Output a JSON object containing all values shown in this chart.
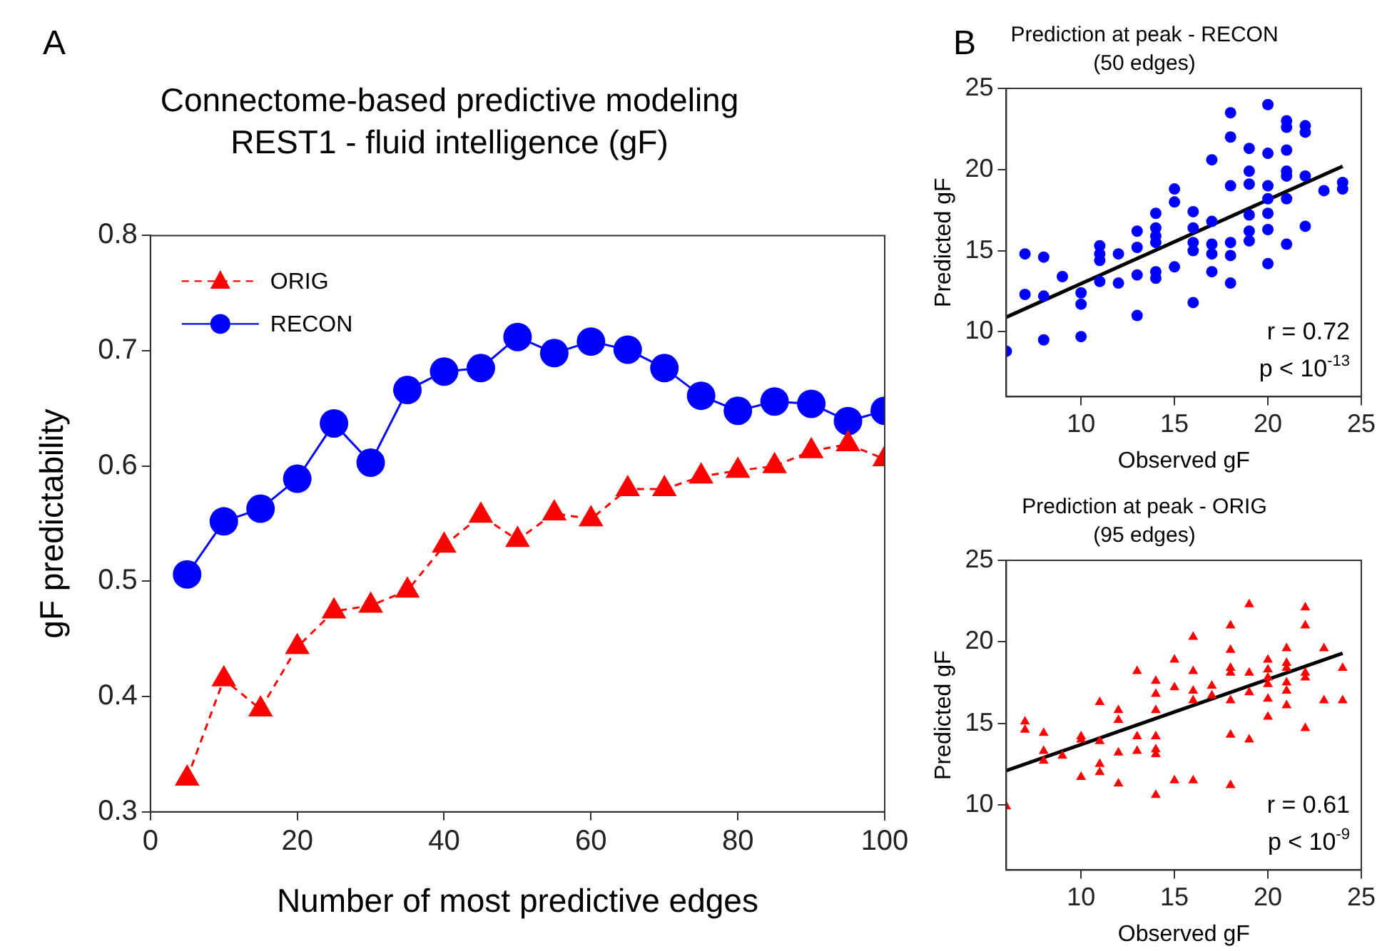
{
  "chart_data": [
    {
      "type": "line",
      "title": "Connectome-based predictive modeling",
      "subtitle": "REST1 - fluid intelligence (gF)",
      "xlabel": "Number of most predictive edges",
      "ylabel": "gF predictability",
      "annotations": [
        "A"
      ],
      "x": [
        5,
        10,
        15,
        20,
        25,
        30,
        35,
        40,
        45,
        50,
        55,
        60,
        65,
        70,
        75,
        80,
        85,
        90,
        95,
        100
      ],
      "series": [
        {
          "name": "ORIG",
          "color": "#ff0000",
          "marker": "triangle",
          "line_style": "dashed",
          "values": [
            0.329,
            0.415,
            0.389,
            0.443,
            0.474,
            0.479,
            0.492,
            0.531,
            0.557,
            0.536,
            0.559,
            0.554,
            0.58,
            0.58,
            0.591,
            0.596,
            0.6,
            0.613,
            0.619,
            0.606
          ]
        },
        {
          "name": "RECON",
          "color": "#0000ff",
          "marker": "circle",
          "line_style": "solid",
          "values": [
            0.506,
            0.552,
            0.563,
            0.589,
            0.637,
            0.603,
            0.666,
            0.682,
            0.685,
            0.712,
            0.698,
            0.708,
            0.701,
            0.685,
            0.661,
            0.648,
            0.656,
            0.654,
            0.639,
            0.648
          ]
        }
      ],
      "xlim": [
        0,
        100
      ],
      "xticks": [
        0,
        20,
        40,
        60,
        80,
        100
      ],
      "ylim": [
        0.3,
        0.8
      ],
      "yticks": [
        0.3,
        0.4,
        0.5,
        0.6,
        0.7,
        0.8
      ],
      "legend": "top left"
    },
    {
      "type": "scatter",
      "title": "Prediction at peak - RECON",
      "subtitle": "(50 edges)",
      "xlabel": "Observed gF",
      "ylabel": "Predicted gF",
      "annotations": [
        "B",
        "r = 0.72",
        "p < 10$^{-13}$"
      ],
      "series": [
        {
          "color": "#0000ff",
          "marker": "circle",
          "x": [
            6,
            7,
            7,
            8,
            8,
            8,
            9,
            10,
            10,
            10,
            11,
            11,
            11,
            11,
            12,
            12,
            13,
            13,
            13,
            13,
            14,
            14,
            14,
            14,
            14,
            14,
            15,
            15,
            15,
            16,
            16,
            16,
            16,
            16,
            17,
            17,
            17,
            17,
            18,
            18,
            18,
            18,
            19,
            19,
            19,
            19,
            19,
            20,
            20,
            20,
            20,
            20,
            21,
            21,
            21,
            21,
            22,
            22,
            23,
            24,
            24,
            18,
            18,
            20,
            21,
            21,
            22,
            22,
            19,
            20,
            21,
            17
          ],
          "values": [
            8.8,
            14.8,
            12.3,
            14.6,
            12.2,
            9.5,
            13.4,
            12.4,
            11.7,
            9.7,
            15.3,
            14.8,
            14.4,
            13.1,
            14.8,
            13.0,
            16.2,
            15.2,
            13.5,
            11.0,
            17.3,
            16.4,
            15.9,
            15.5,
            13.7,
            13.3,
            18.8,
            18.0,
            14.0,
            17.4,
            16.4,
            15.5,
            15.0,
            11.8,
            16.8,
            15.4,
            14.8,
            13.7,
            19.0,
            15.5,
            14.7,
            13.0,
            19.9,
            19.1,
            17.2,
            16.2,
            15.6,
            19.0,
            18.2,
            17.3,
            16.3,
            14.2,
            19.9,
            19.6,
            18.2,
            15.4,
            19.6,
            16.5,
            18.7,
            19.2,
            18.8,
            23.5,
            22.0,
            24.0,
            23.0,
            22.6,
            22.7,
            22.3,
            21.3,
            21.0,
            21.2,
            20.6
          ]
        },
        {
          "type": "line",
          "color": "#000000",
          "marker": "none",
          "line_style": "solid",
          "x": [
            6,
            24
          ],
          "values": [
            10.9,
            20.2
          ]
        }
      ],
      "xlim": [
        6,
        25
      ],
      "xticks": [
        10,
        15,
        20,
        25
      ],
      "ylim": [
        6,
        25
      ],
      "yticks": [
        10,
        15,
        20,
        25
      ]
    },
    {
      "type": "scatter",
      "title": "Prediction at peak - ORIG",
      "subtitle": "(95 edges)",
      "xlabel": "Observed gF",
      "ylabel": "Predicted gF",
      "annotations": [
        "r = 0.61",
        "p < 10$^{-9}$"
      ],
      "series": [
        {
          "color": "#ff0000",
          "marker": "triangle",
          "x": [
            6,
            7,
            7,
            8,
            8,
            8,
            9,
            10,
            10,
            10,
            11,
            11,
            11,
            11,
            12,
            12,
            12,
            12,
            13,
            13,
            13,
            14,
            14,
            14,
            14,
            14,
            14,
            14,
            15,
            15,
            15,
            16,
            16,
            16,
            16,
            16,
            17,
            17,
            18,
            18,
            18,
            18,
            18,
            18,
            18,
            19,
            19,
            19,
            19,
            20,
            20,
            20,
            20,
            20,
            20,
            21,
            21,
            21,
            21,
            21,
            21,
            22,
            22,
            22,
            22,
            22,
            23,
            23,
            24,
            24
          ],
          "values": [
            9.9,
            15.1,
            14.6,
            14.4,
            13.3,
            12.7,
            13.0,
            14.2,
            14.0,
            11.7,
            16.3,
            13.9,
            12.5,
            12.0,
            15.8,
            15.2,
            13.2,
            11.3,
            18.2,
            14.2,
            13.3,
            17.6,
            16.8,
            15.8,
            14.2,
            13.4,
            13.1,
            10.6,
            18.9,
            17.2,
            11.5,
            20.3,
            18.2,
            17.0,
            16.4,
            11.5,
            17.3,
            16.7,
            21.0,
            19.5,
            18.4,
            18.1,
            16.4,
            14.3,
            11.2,
            22.3,
            18.1,
            16.9,
            14.0,
            18.9,
            18.3,
            17.8,
            17.4,
            16.5,
            15.4,
            19.6,
            18.7,
            18.4,
            17.5,
            17.0,
            16.1,
            22.1,
            21.0,
            18.1,
            17.8,
            14.7,
            19.6,
            16.4,
            18.4,
            16.4
          ]
        },
        {
          "type": "line",
          "color": "#000000",
          "marker": "none",
          "line_style": "solid",
          "x": [
            6,
            24
          ],
          "values": [
            12.1,
            19.3
          ]
        }
      ],
      "xlim": [
        6,
        25
      ],
      "xticks": [
        10,
        15,
        20,
        25
      ],
      "ylim": [
        6,
        25
      ],
      "yticks": [
        10,
        15,
        20,
        25
      ]
    }
  ]
}
